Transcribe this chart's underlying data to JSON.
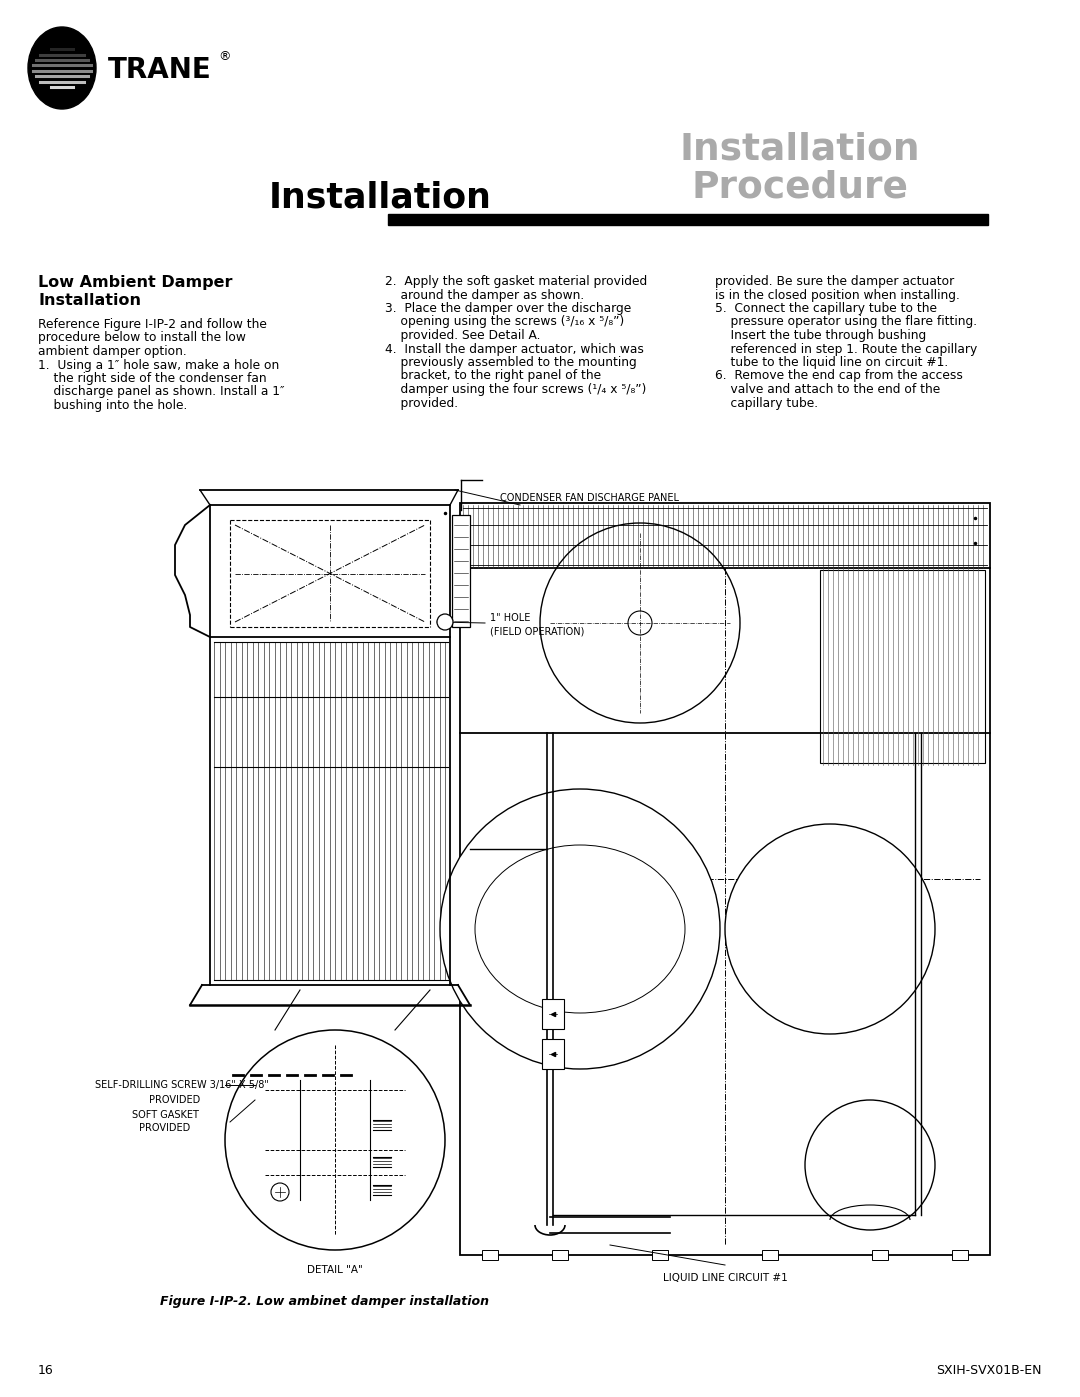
{
  "page_bg": "#ffffff",
  "title_left": "Installation",
  "title_right_line1": "Installation",
  "title_right_line2": "Procedure",
  "section_title": "Low Ambient Damper\nInstallation",
  "body_col1_line1": "Reference Figure I-IP-2 and follow the",
  "body_col1_line2": "procedure below to install the low",
  "body_col1_line3": "ambient damper option.",
  "body_col1_line4": "1.  Using a 1″ hole saw, make a hole on",
  "body_col1_line5": "    the right side of the condenser fan",
  "body_col1_line6": "    discharge panel as shown. Install a 1″",
  "body_col1_line7": "    bushing into the hole.",
  "body_col2_line1": "2.  Apply the soft gasket material provided",
  "body_col2_line2": "    around the damper as shown.",
  "body_col2_line3": "3.  Place the damper over the discharge",
  "body_col2_line4": "    opening using the screws (³/₁₆ x ⁵/₈”)",
  "body_col2_line5": "    provided. See Detail A.",
  "body_col2_line6": "4.  Install the damper actuator, which was",
  "body_col2_line7": "    previously assembled to the mounting",
  "body_col2_line8": "    bracket, to the right panel of the",
  "body_col2_line9": "    damper using the four screws (¹/₄ x ⁵/₈”)",
  "body_col2_line10": "    provided.",
  "body_col3_line1": "provided. Be sure the damper actuator",
  "body_col3_line2": "is in the closed position when installing.",
  "body_col3_line3": "5.  Connect the capillary tube to the",
  "body_col3_line4": "    pressure operator using the flare fitting.",
  "body_col3_line5": "    Insert the tube through bushing",
  "body_col3_line6": "    referenced in step 1. Route the capillary",
  "body_col3_line7": "    tube to the liquid line on circuit #1.",
  "body_col3_line8": "6.  Remove the end cap from the access",
  "body_col3_line9": "    valve and attach to the end of the",
  "body_col3_line10": "    capillary tube.",
  "figure_caption": "Figure I-IP-2. Low ambinet damper installation",
  "page_number": "16",
  "doc_number": "SXIH-SVX01B-EN"
}
